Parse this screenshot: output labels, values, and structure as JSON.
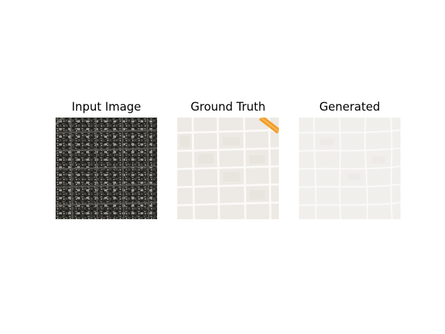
{
  "panels": [
    {
      "title": "Input Image"
    },
    {
      "title": "Ground Truth"
    },
    {
      "title": "Generated"
    }
  ],
  "colors": {
    "background": "#ffffff",
    "satellite_dark": "#2b2a27",
    "satellite_street": "#55544f",
    "map_block": "#ede9e4",
    "map_road": "#fbfaf8",
    "map_highway": "#f29e28",
    "generated_block": "#f1efec",
    "generated_road": "#fbfbfa"
  },
  "icons": {
    "input": "satellite-image",
    "truth": "street-map",
    "generated": "generated-street-map"
  }
}
